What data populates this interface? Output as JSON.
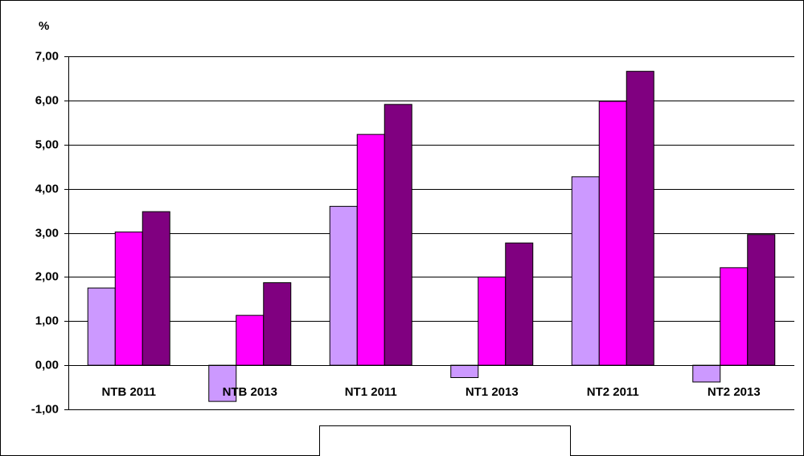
{
  "chart_data": {
    "type": "bar",
    "y_label": "%",
    "categories": [
      "NTB 2011",
      "NTB 2013",
      "NT1 2011",
      "NT1 2013",
      "NT2 2011",
      "NT2 2013"
    ],
    "series": [
      {
        "color": "#cc99ff",
        "values": [
          1.75,
          -0.82,
          3.6,
          -0.28,
          4.27,
          -0.38
        ]
      },
      {
        "color": "#ff00ff",
        "values": [
          3.02,
          1.13,
          5.23,
          2.0,
          5.98,
          2.21
        ]
      },
      {
        "color": "#800080",
        "values": [
          3.48,
          1.87,
          5.91,
          2.77,
          6.66,
          2.96
        ]
      }
    ],
    "ylim": [
      -1,
      7
    ],
    "yticks": [
      {
        "value": -1,
        "label": "-1,00"
      },
      {
        "value": 0,
        "label": "0,00"
      },
      {
        "value": 1,
        "label": "1,00"
      },
      {
        "value": 2,
        "label": "2,00"
      },
      {
        "value": 3,
        "label": "3,00"
      },
      {
        "value": 4,
        "label": "4,00"
      },
      {
        "value": 5,
        "label": "5,00"
      },
      {
        "value": 6,
        "label": "6,00"
      },
      {
        "value": 7,
        "label": "7,00"
      }
    ],
    "grid": true
  }
}
